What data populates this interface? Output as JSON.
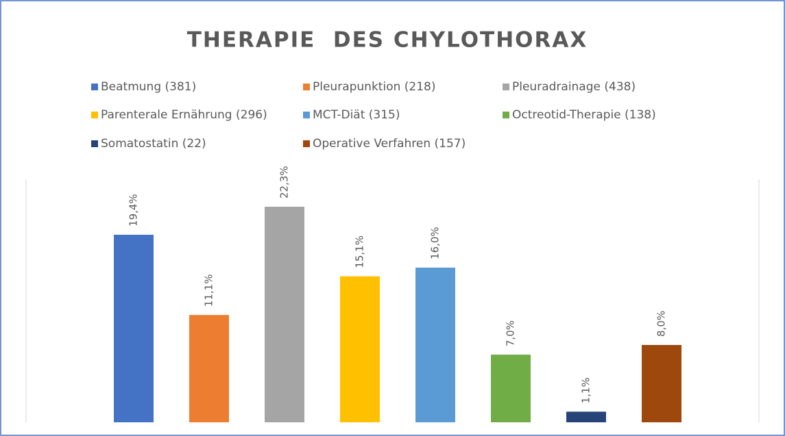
{
  "chart_data": {
    "type": "bar",
    "title": "THERAPIE  DES CHYLOTHORAX",
    "categories": [
      null
    ],
    "series": [
      {
        "name": "Beatmung (381)",
        "color": "#4472c4",
        "values": [
          19.4
        ],
        "value_labels": [
          "19,4%"
        ]
      },
      {
        "name": "Pleurapunktion (218)",
        "color": "#ed7d31",
        "values": [
          11.1
        ],
        "value_labels": [
          "11,1%"
        ]
      },
      {
        "name": "Pleuradrainage (438)",
        "color": "#a5a5a5",
        "values": [
          22.3
        ],
        "value_labels": [
          "22,3%"
        ]
      },
      {
        "name": "Parenterale Ernährung (296)",
        "color": "#ffc000",
        "values": [
          15.1
        ],
        "value_labels": [
          "15,1%"
        ]
      },
      {
        "name": "MCT-Diät (315)",
        "color": "#5b9bd5",
        "values": [
          16.0
        ],
        "value_labels": [
          "16,0%"
        ]
      },
      {
        "name": "Octreotid-Therapie (138)",
        "color": "#70ad47",
        "values": [
          7.0
        ],
        "value_labels": [
          "7,0%"
        ]
      },
      {
        "name": "Somatostatin (22)",
        "color": "#264478",
        "values": [
          1.1
        ],
        "value_labels": [
          "1,1%"
        ]
      },
      {
        "name": "Operative Verfahren (157)",
        "color": "#9e480e",
        "values": [
          8.0
        ],
        "value_labels": [
          "8,0%"
        ]
      }
    ],
    "legend": "top"
  }
}
